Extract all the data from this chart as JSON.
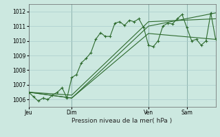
{
  "title": "Pression niveau de la mer( hPa )",
  "bg_color": "#cce8e0",
  "grid_color": "#aacccc",
  "line_color": "#2d6a2d",
  "ylim": [
    1005.5,
    1012.5
  ],
  "yticks": [
    1006,
    1007,
    1008,
    1009,
    1010,
    1011,
    1012
  ],
  "day_labels": [
    "Jeu",
    "Dim",
    "Ven",
    "Sam"
  ],
  "day_positions": [
    0,
    9,
    25,
    33
  ],
  "xlim_max": 40,
  "series1_x": [
    0,
    1,
    2,
    3,
    4,
    5,
    6,
    7,
    8,
    9,
    10,
    11,
    12,
    13,
    14,
    15,
    16,
    17,
    18,
    19,
    20,
    21,
    22,
    23,
    24,
    25,
    26,
    27,
    28,
    29,
    30,
    31,
    32,
    33,
    34,
    35,
    36,
    37,
    38,
    39
  ],
  "series1_y": [
    1006.5,
    1006.2,
    1005.9,
    1006.1,
    1006.0,
    1006.3,
    1006.5,
    1006.8,
    1006.1,
    1007.5,
    1007.7,
    1008.5,
    1008.8,
    1009.2,
    1010.1,
    1010.55,
    1010.3,
    1010.3,
    1011.2,
    1011.3,
    1011.05,
    1011.4,
    1011.3,
    1011.5,
    1010.9,
    1009.7,
    1009.6,
    1010.0,
    1011.0,
    1011.2,
    1011.15,
    1011.5,
    1011.8,
    1010.9,
    1010.0,
    1010.1,
    1009.7,
    1010.0,
    1011.9,
    1010.1
  ],
  "series2_x": [
    0,
    9,
    25,
    39
  ],
  "series2_y": [
    1006.5,
    1006.1,
    1010.5,
    1010.1
  ],
  "series3_x": [
    0,
    9,
    25,
    39
  ],
  "series3_y": [
    1006.5,
    1006.1,
    1011.0,
    1011.9
  ],
  "series4_x": [
    0,
    9,
    25,
    39
  ],
  "series4_y": [
    1006.5,
    1006.3,
    1011.3,
    1011.5
  ]
}
